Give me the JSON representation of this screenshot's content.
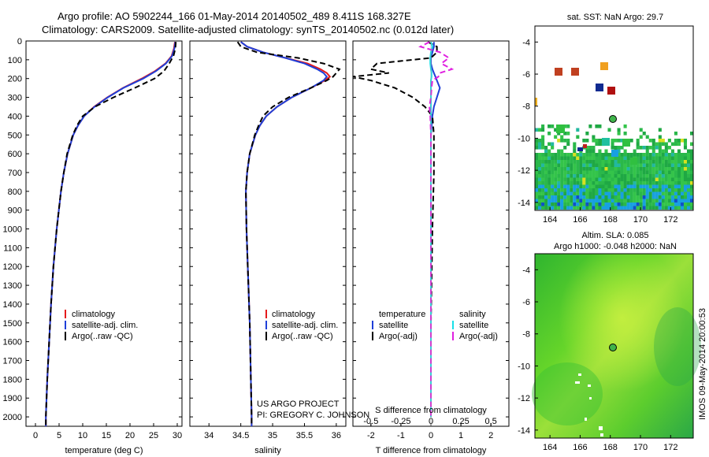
{
  "title": {
    "line1": "Argo profile: AO 5902244_166 01-May-2014 20140502_489 8.411S 168.327E",
    "line2": "Climatology: CARS2009. Satellite-adjusted climatology: synTS_20140502.nc (0.012d later)"
  },
  "colors": {
    "climatology": "#e41a1c",
    "satellite": "#1f3fd8",
    "argo": "#000000",
    "salinity_sat": "#18e0e8",
    "salinity_argo": "#e020e0"
  },
  "panels": {
    "temperature": {
      "xlabel": "temperature (deg C)",
      "legend": [
        "climatology",
        "satellite-adj. clim.",
        "Argo(..raw -QC)"
      ]
    },
    "salinity": {
      "xlabel": "salinity",
      "legend": [
        "climatology",
        "satellite-adj. clim.",
        "Argo(..raw -QC)"
      ],
      "note1": "US ARGO PROJECT",
      "note2": "PI: GREGORY C. JOHNSON"
    },
    "difference": {
      "xlabel": "T difference from climatology",
      "top_label": "S difference from climatology",
      "legend_temperature": "temperature",
      "legend_salinity": "salinity",
      "legend_items": [
        "satellite",
        "Argo(-adj)",
        "satellite",
        "Argo(-adj)"
      ]
    }
  },
  "map_sst": {
    "title": "sat. SST: NaN Argo: 29.7"
  },
  "map_sla": {
    "title1": "Altim. SLA: 0.085",
    "title2": "Argo h1000: -0.048 h2000: NaN"
  },
  "timestamp": "IMOS 09-May-2014 20:00:53",
  "chart_data": [
    {
      "type": "line",
      "name": "temperature profile",
      "xlabel": "temperature (deg C)",
      "ylabel": "",
      "xlim": [
        -2,
        31
      ],
      "ylim": [
        2050,
        0
      ],
      "xticks": [
        0,
        5,
        10,
        15,
        20,
        25,
        30
      ],
      "yticks": [
        0,
        100,
        200,
        300,
        400,
        500,
        600,
        700,
        800,
        900,
        1000,
        1100,
        1200,
        1300,
        1400,
        1500,
        1600,
        1700,
        1800,
        1900,
        2000
      ],
      "depth": [
        5,
        40,
        80,
        120,
        160,
        200,
        250,
        300,
        350,
        400,
        450,
        500,
        600,
        700,
        800,
        1000,
        1200,
        1400,
        1600,
        1800,
        2000,
        2050
      ],
      "series": [
        {
          "name": "climatology",
          "values": [
            29.5,
            29.3,
            28.8,
            27.5,
            25.3,
            22.5,
            18.5,
            15.2,
            12.4,
            10.3,
            9.0,
            8.0,
            6.8,
            6.0,
            5.4,
            4.5,
            3.8,
            3.3,
            2.9,
            2.5,
            2.2,
            2.2
          ]
        },
        {
          "name": "satellite-adj. clim.",
          "values": [
            29.6,
            29.4,
            28.9,
            27.6,
            25.5,
            22.8,
            18.6,
            15.3,
            12.5,
            10.3,
            9.0,
            8.0,
            6.8,
            6.0,
            5.4,
            4.5,
            3.8,
            3.3,
            2.9,
            2.5,
            2.2,
            2.2
          ]
        },
        {
          "name": "Argo(..raw -QC)",
          "values": [
            29.7,
            29.6,
            29.2,
            28.3,
            27.2,
            25.2,
            21.0,
            16.5,
            12.6,
            10.0,
            8.8,
            7.9,
            6.7,
            6.0,
            5.4,
            4.5,
            3.8,
            3.3,
            2.9,
            2.5,
            2.2,
            2.2
          ]
        }
      ]
    },
    {
      "type": "line",
      "name": "salinity profile",
      "xlabel": "salinity",
      "xlim": [
        33.7,
        36.15
      ],
      "ylim": [
        2050,
        0
      ],
      "xticks": [
        34,
        34.5,
        35,
        35.5,
        36
      ],
      "depth": [
        5,
        30,
        60,
        90,
        120,
        150,
        170,
        190,
        210,
        250,
        300,
        350,
        400,
        450,
        500,
        600,
        700,
        800,
        1000,
        1200,
        1500,
        2000,
        2050
      ],
      "series": [
        {
          "name": "climatology",
          "values": [
            34.5,
            34.6,
            34.85,
            35.2,
            35.55,
            35.75,
            35.85,
            35.9,
            35.82,
            35.6,
            35.3,
            35.07,
            34.9,
            34.8,
            34.73,
            34.64,
            34.6,
            34.58,
            34.59,
            34.61,
            34.64,
            34.67,
            34.67
          ]
        },
        {
          "name": "satellite-adj. clim.",
          "values": [
            34.5,
            34.6,
            34.85,
            35.2,
            35.5,
            35.7,
            35.8,
            35.85,
            35.8,
            35.6,
            35.3,
            35.07,
            34.9,
            34.8,
            34.73,
            34.64,
            34.6,
            34.58,
            34.59,
            34.61,
            34.64,
            34.67,
            34.67
          ]
        },
        {
          "name": "Argo(..raw -QC)",
          "values": [
            34.45,
            34.5,
            34.75,
            35.4,
            35.8,
            36.05,
            36.0,
            35.95,
            35.85,
            35.6,
            35.25,
            35.0,
            34.85,
            34.78,
            34.72,
            34.64,
            34.6,
            34.58,
            34.59,
            34.61,
            34.64,
            34.67,
            34.67
          ]
        }
      ]
    },
    {
      "type": "line",
      "name": "difference from climatology",
      "xlabel": "T difference from climatology",
      "x2label": "S difference from climatology",
      "xlim": [
        -2.6,
        2.6
      ],
      "ylim": [
        2050,
        0
      ],
      "xticks": [
        -2,
        -1,
        0,
        1,
        2
      ],
      "x2ticks": [
        "-0.5",
        "-0.25",
        "0",
        "0.25",
        "0.5"
      ],
      "depth": [
        5,
        30,
        60,
        90,
        120,
        150,
        170,
        190,
        210,
        250,
        300,
        350,
        400,
        500,
        700,
        1000,
        1500,
        2000
      ],
      "series": [
        {
          "name": "temperature satellite",
          "values": [
            0.1,
            0.1,
            0.05,
            0.0,
            0.0,
            0.05,
            0.1,
            0.15,
            0.2,
            0.3,
            0.2,
            0.1,
            0.05,
            0.0,
            0.0,
            0.0,
            0.0,
            0.0
          ]
        },
        {
          "name": "temperature Argo(-adj)",
          "values": [
            -0.1,
            0.2,
            0.2,
            0.0,
            -1.8,
            -2.0,
            -1.4,
            -2.6,
            -2.0,
            -1.2,
            -0.6,
            -0.2,
            0.05,
            0.1,
            0.1,
            0.05,
            0.0,
            0.0
          ]
        },
        {
          "name": "salinity satellite",
          "values": [
            0.0,
            0.05,
            0.0,
            -0.02,
            -0.02,
            0.0,
            0.02,
            0.02,
            0.0,
            0.0,
            0.0,
            0.0,
            0.0,
            0.0,
            0.0,
            0.0,
            0.0,
            0.0
          ]
        },
        {
          "name": "salinity Argo(-adj)",
          "values": [
            -0.05,
            -0.35,
            0.3,
            0.6,
            0.35,
            0.7,
            0.3,
            0.25,
            0.05,
            0.02,
            0.0,
            -0.05,
            -0.02,
            0.0,
            0.0,
            0.0,
            0.0,
            0.0
          ]
        }
      ]
    },
    {
      "type": "heatmap",
      "name": "sat. SST map",
      "xlim": [
        163,
        173.5
      ],
      "ylim": [
        -14.5,
        -3
      ],
      "xticks": [
        164,
        166,
        168,
        170,
        172
      ],
      "yticks": [
        -4,
        -6,
        -8,
        -10,
        -12,
        -14
      ],
      "argo_position": [
        168.327,
        -8.411
      ]
    },
    {
      "type": "heatmap",
      "name": "Altim. SLA map",
      "xlim": [
        163,
        173.5
      ],
      "ylim": [
        -14.5,
        -3
      ],
      "xticks": [
        164,
        166,
        168,
        170,
        172
      ],
      "yticks": [
        -4,
        -6,
        -8,
        -10,
        -12,
        -14
      ],
      "argo_position": [
        168.327,
        -8.411
      ]
    }
  ]
}
